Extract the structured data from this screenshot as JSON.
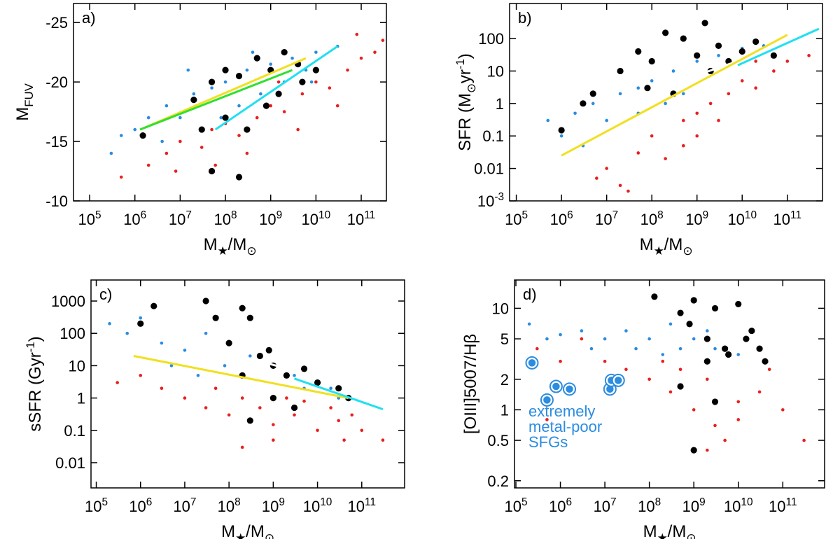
{
  "chart_data": [
    {
      "type": "scatter",
      "annotation": "a)",
      "x_label": "M_{★}/M_{⊙}",
      "y_label": "M_{FUV}",
      "xlog": true,
      "ylog": false,
      "xlim": [
        44000,
        360000000000
      ],
      "ylim": [
        -10,
        -26.6
      ],
      "xticks": [
        {
          "value": 100000,
          "label": "10^{5}"
        },
        {
          "value": 1000000,
          "label": "10^{6}"
        },
        {
          "value": 10000000,
          "label": "10^{7}"
        },
        {
          "value": 100000000,
          "label": "10^{8}"
        },
        {
          "value": 1000000000,
          "label": "10^{9}"
        },
        {
          "value": 10000000000,
          "label": "10^{10}"
        },
        {
          "value": 100000000000,
          "label": "10^{11}"
        }
      ],
      "yticks": [
        -25,
        -20,
        -15,
        -10
      ],
      "series": [
        {
          "color": "#e8201e",
          "marker": "small",
          "x": [
            2000000.0,
            5000000.0,
            10000000.0,
            30000000.0,
            50000000.0,
            100000000.0,
            200000000.0,
            500000000.0,
            1000000000.0,
            2000000000.0,
            5000000000.0,
            10000000000.0,
            20000000000.0,
            50000000000.0,
            100000000000.0,
            300000000000.0,
            500000.0,
            8000000.0,
            300000000.0,
            4000000000.0,
            80000000000.0,
            200000000000.0,
            30000000000.0,
            1500000000.0,
            60000000.0
          ],
          "values": [
            -13,
            -14,
            -15,
            -14.5,
            -16,
            -16.5,
            -15.5,
            -17,
            -18,
            -17.5,
            -19,
            -20,
            -19.5,
            -21,
            -22,
            -23.5,
            -12,
            -12.5,
            -14,
            -16,
            -24,
            -22.5,
            -18,
            -20,
            -13
          ]
        },
        {
          "color": "#2b8ce0",
          "marker": "small",
          "x": [
            300000.0,
            500000.0,
            1000000.0,
            2000000.0,
            5000000.0,
            10000000.0,
            20000000.0,
            50000000.0,
            100000000.0,
            300000000.0,
            1000000000.0,
            3000000000.0,
            10000000000.0,
            30000000000.0,
            200000000.0,
            600000000.0,
            2000000000.0,
            6000000000.0,
            4000000.0,
            80000000.0,
            15000000.0,
            400000000.0,
            8000000000.0
          ],
          "values": [
            -14,
            -15.5,
            -16,
            -17,
            -18,
            -17,
            -19,
            -19.5,
            -20,
            -21,
            -21.5,
            -22,
            -22.5,
            -23,
            -18,
            -19,
            -20,
            -21,
            -15,
            -17,
            -21,
            -22.5,
            -20
          ]
        },
        {
          "color": "#000000",
          "marker": "large",
          "x": [
            1500000.0,
            20000000.0,
            50000000.0,
            100000000.0,
            200000000.0,
            500000000.0,
            1000000000.0,
            2000000000.0,
            4000000000.0,
            100000000.0,
            300000000.0,
            50000000.0,
            200000000.0,
            800000000.0,
            30000000.0,
            1500000000.0,
            5000000000.0,
            10000000000.0
          ],
          "values": [
            -15.5,
            -18.5,
            -20,
            -21,
            -20.5,
            -22,
            -21,
            -22.5,
            -21.5,
            -17,
            -16,
            -12.5,
            -12,
            -18,
            -16,
            -19,
            -20,
            -21
          ]
        },
        {
          "color": "#f0e020",
          "marker": "line",
          "x": [
            1300000.0,
            6000000000.0
          ],
          "values": [
            -16,
            -22
          ]
        },
        {
          "color": "#30e030",
          "marker": "line",
          "x": [
            1300000.0,
            3000000000.0
          ],
          "values": [
            -16,
            -21
          ]
        },
        {
          "color": "#20e0f0",
          "marker": "line",
          "x": [
            60000000.0,
            30000000000.0
          ],
          "values": [
            -16,
            -23
          ]
        }
      ]
    },
    {
      "type": "scatter",
      "annotation": "b)",
      "x_label": "M_{★}/M_{⊙}",
      "y_label": "SFR (M_{⊙}yr^{-1})",
      "xlog": true,
      "ylog": true,
      "xlim": [
        71000,
        600000000000
      ],
      "ylim": [
        0.001,
        1200
      ],
      "xticks": [
        {
          "value": 100000,
          "label": "10^{5}"
        },
        {
          "value": 1000000,
          "label": "10^{6}"
        },
        {
          "value": 10000000,
          "label": "10^{7}"
        },
        {
          "value": 100000000,
          "label": "10^{8}"
        },
        {
          "value": 1000000000,
          "label": "10^{9}"
        },
        {
          "value": 10000000000,
          "label": "10^{10}"
        },
        {
          "value": 100000000000,
          "label": "10^{11}"
        }
      ],
      "yticks": [
        {
          "value": 0.001,
          "label": "10^{-3}"
        },
        0.01,
        0.1,
        1,
        10,
        100
      ],
      "series": [
        {
          "color": "#e8201e",
          "marker": "small",
          "x": [
            10000000.0,
            20000000.0,
            50000000.0,
            100000000.0,
            200000000.0,
            500000000.0,
            1000000000.0,
            2000000000.0,
            5000000000.0,
            10000000000.0,
            20000000000.0,
            50000000000.0,
            100000000000.0,
            300000000000.0,
            500000000.0,
            1000000000.0,
            3000000000.0,
            6000000.0,
            30000000.0,
            20000000000.0
          ],
          "values": [
            0.01,
            0.003,
            0.03,
            0.1,
            0.02,
            0.3,
            0.5,
            1,
            2,
            5,
            3,
            10,
            20,
            30,
            0.05,
            0.1,
            0.3,
            0.005,
            0.002,
            20
          ]
        },
        {
          "color": "#2b8ce0",
          "marker": "small",
          "x": [
            500000.0,
            1000000.0,
            2000000.0,
            5000000.0,
            10000000.0,
            20000000.0,
            50000000.0,
            100000000.0,
            300000000.0,
            1000000000.0,
            3000000000.0,
            10000000000.0,
            30000000000.0,
            3000000.0,
            50000000.0,
            200000000.0,
            500000000.0
          ],
          "values": [
            0.3,
            0.1,
            0.5,
            1,
            0.3,
            2,
            3,
            5,
            10,
            20,
            30,
            50,
            60,
            0.05,
            0.5,
            1,
            2
          ]
        },
        {
          "color": "#000000",
          "marker": "large",
          "x": [
            1000000.0,
            3000000.0,
            5000000.0,
            20000000.0,
            50000000.0,
            100000000.0,
            200000000.0,
            500000000.0,
            1000000000.0,
            2000000000.0,
            3000000000.0,
            5000000000.0,
            10000000000.0,
            20000000000.0,
            50000000000.0,
            80000000.0,
            300000000.0,
            1500000000.0
          ],
          "values": [
            0.15,
            1,
            2,
            10,
            40,
            20,
            150,
            100,
            30,
            10,
            60,
            20,
            40,
            80,
            30,
            3,
            2,
            300
          ]
        },
        {
          "color": "#ffffff",
          "marker": "line",
          "x": [
            100000000.0,
            80000000000.0
          ],
          "values": [
            2.5,
            60
          ]
        },
        {
          "color": "#f0e020",
          "marker": "line",
          "x": [
            1000000.0,
            100000000000.0
          ],
          "values": [
            0.025,
            130
          ]
        },
        {
          "color": "#20e0f0",
          "marker": "line",
          "x": [
            8000000000.0,
            500000000000.0
          ],
          "values": [
            15,
            200
          ]
        }
      ]
    },
    {
      "type": "scatter",
      "annotation": "c)",
      "x_label": "M_{★}/M_{⊙}",
      "y_label": "sSFR (Gyr^{-1})",
      "xlog": true,
      "ylog": true,
      "xlim": [
        76000,
        930000000000
      ],
      "ylim": [
        0.00166,
        4470
      ],
      "xticks": [
        {
          "value": 100000,
          "label": "10^{5}"
        },
        {
          "value": 1000000,
          "label": "10^{6}"
        },
        {
          "value": 10000000,
          "label": "10^{7}"
        },
        {
          "value": 100000000,
          "label": "10^{8}"
        },
        {
          "value": 1000000000,
          "label": "10^{9}"
        },
        {
          "value": 10000000000,
          "label": "10^{10}"
        },
        {
          "value": 100000000000,
          "label": "10^{11}"
        }
      ],
      "yticks": [
        0.01,
        0.1,
        1,
        10,
        100,
        1000
      ],
      "series": [
        {
          "color": "#e8201e",
          "marker": "small",
          "x": [
            300000.0,
            1000000.0,
            3000000.0,
            10000000.0,
            30000000.0,
            100000000.0,
            300000000.0,
            1000000000.0,
            3000000000.0,
            10000000000.0,
            30000000000.0,
            100000000000.0,
            300000000000.0,
            50000000.0,
            200000000.0,
            500000000.0,
            2000000000.0,
            5000000000.0,
            20000000000.0,
            60000000000.0,
            200000000.0,
            1000000000.0,
            40000000000.0
          ],
          "values": [
            3,
            5,
            2,
            1,
            0.5,
            0.3,
            0.2,
            0.15,
            0.3,
            0.1,
            0.2,
            0.1,
            0.05,
            2,
            1,
            0.5,
            1,
            0.8,
            0.5,
            0.3,
            0.03,
            0.05,
            0.05
          ]
        },
        {
          "color": "#2b8ce0",
          "marker": "small",
          "x": [
            200000.0,
            500000.0,
            1000000.0,
            3000000.0,
            10000000.0,
            30000000.0,
            100000000.0,
            300000000.0,
            1000000000.0,
            3000000000.0,
            10000000000.0,
            30000000000.0,
            5000000.0,
            20000000.0,
            80000000.0,
            5000000000.0,
            20000000000.0
          ],
          "values": [
            200,
            100,
            300,
            50,
            30,
            100,
            50,
            20,
            10,
            5,
            3,
            1,
            10,
            5,
            10,
            2,
            2
          ]
        },
        {
          "color": "#000000",
          "marker": "large",
          "x": [
            1000000.0,
            2000000.0,
            30000000.0,
            50000000.0,
            100000000.0,
            200000000.0,
            300000000.0,
            500000000.0,
            1000000000.0,
            2000000000.0,
            5000000000.0,
            10000000000.0,
            30000000000.0,
            50000000000.0,
            200000000.0,
            300000000.0,
            1000000000.0,
            3000000000.0,
            800000000.0
          ],
          "values": [
            200,
            700,
            1000,
            300,
            50,
            600,
            300,
            20,
            10,
            5,
            8,
            3,
            2,
            1,
            5,
            0.2,
            1,
            0.5,
            30
          ]
        },
        {
          "color": "#f0e020",
          "marker": "line",
          "x": [
            700000.0,
            50000000000.0
          ],
          "values": [
            20,
            1
          ]
        },
        {
          "color": "#ffffff",
          "marker": "line",
          "x": [
            100000000.0,
            30000000000.0
          ],
          "values": [
            25,
            3
          ]
        },
        {
          "color": "#20e0f0",
          "marker": "line",
          "x": [
            3000000000.0,
            300000000000.0
          ],
          "values": [
            4,
            0.45
          ]
        }
      ]
    },
    {
      "type": "scatter",
      "annotation": "d)",
      "x_label": "M_{★}/M_{⊙}",
      "y_label": "[OIII]5007/Hβ",
      "notes": [
        "extremely",
        "metal-poor",
        "SFGs"
      ],
      "notes_color": "#2b8ce0",
      "xlog": true,
      "ylog": true,
      "xlim": [
        93000,
        870000000000
      ],
      "ylim": [
        0.17,
        19
      ],
      "xticks": [
        {
          "value": 100000,
          "label": "10^{5}"
        },
        {
          "value": 1000000,
          "label": "10^{6}"
        },
        {
          "value": 10000000,
          "label": "10^{7}"
        },
        {
          "value": 100000000,
          "label": "10^{8}"
        },
        {
          "value": 1000000000,
          "label": "10^{9}"
        },
        {
          "value": 10000000000,
          "label": "10^{10}"
        },
        {
          "value": 100000000000,
          "label": "10^{11}"
        }
      ],
      "yticks": [
        0.2,
        0.5,
        1,
        2,
        5,
        10
      ],
      "series": [
        {
          "color": "#e8201e",
          "marker": "small",
          "x": [
            300000.0,
            1000000.0,
            3000000.0,
            10000000.0,
            30000000.0,
            100000000.0,
            300000000.0,
            1000000000.0,
            3000000000.0,
            10000000000.0,
            30000000000.0,
            100000000000.0,
            300000000000.0,
            2000000000.0,
            5000000000.0,
            200000000.0,
            500000000.0,
            2000000000.0,
            10000000000.0,
            50000000000.0,
            500000.0,
            2000000.0
          ],
          "values": [
            4,
            3,
            5,
            3,
            2.5,
            2,
            1.5,
            1,
            0.7,
            1.2,
            1.5,
            1,
            0.5,
            0.4,
            0.5,
            3,
            2.5,
            2,
            0.8,
            2.5,
            0.8,
            1.5
          ]
        },
        {
          "color": "#2b8ce0",
          "marker": "small",
          "x": [
            200000.0,
            500000.0,
            1000000.0,
            3000000.0,
            10000000.0,
            30000000.0,
            100000000.0,
            300000000.0,
            1000000000.0,
            3000000000.0,
            10000000000.0,
            30000000000.0,
            50000000.0,
            200000000.0,
            500000000.0,
            2000000000.0,
            5000000.0
          ],
          "values": [
            7,
            5,
            5.5,
            6,
            5,
            6,
            5,
            7,
            5,
            4,
            3.5,
            4,
            4,
            3.5,
            4,
            6,
            4
          ]
        },
        {
          "color": "#000000",
          "marker": "large",
          "x": [
            130000000.0,
            500000000.0,
            800000000.0,
            1000000000.0,
            2000000000.0,
            3000000000.0,
            5000000000.0,
            10000000000.0,
            20000000000.0,
            30000000000.0,
            40000000000.0,
            2000000000.0,
            6000000000.0,
            15000000000.0,
            1000000000.0,
            3000000000.0,
            500000000.0
          ],
          "values": [
            13,
            9,
            7,
            12,
            5,
            10,
            4,
            11,
            6,
            4,
            3,
            3,
            3.5,
            5,
            0.4,
            1.2,
            1.7
          ]
        },
        {
          "color": "#2b8ce0",
          "marker": "ring",
          "x": [
            230000.0,
            500000.0,
            800000.0,
            1600000.0,
            13000000.0,
            14000000.0,
            20000000.0
          ],
          "values": [
            2.9,
            1.25,
            1.7,
            1.6,
            1.6,
            1.95,
            1.95
          ]
        }
      ]
    }
  ]
}
